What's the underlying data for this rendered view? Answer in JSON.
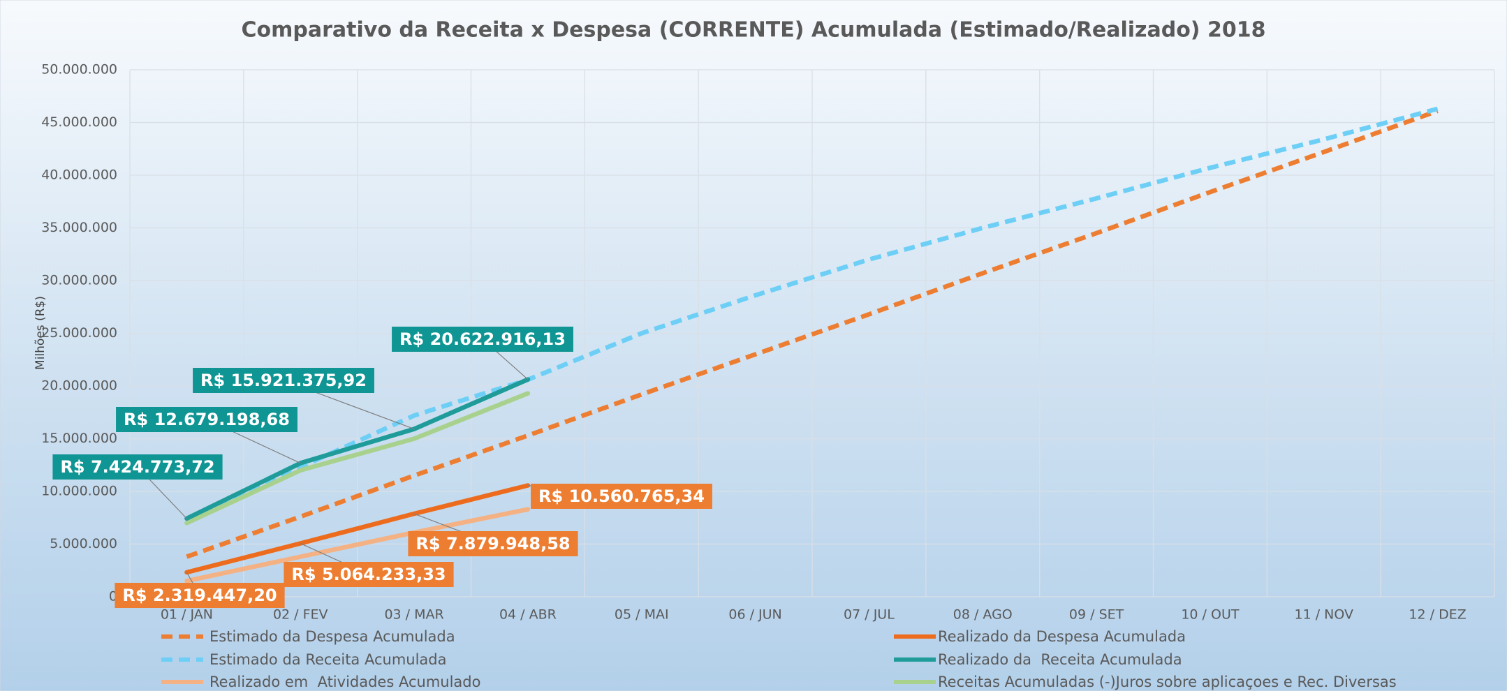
{
  "chart_data": {
    "type": "line",
    "title": "Comparativo da Receita x Despesa (CORRENTE) Acumulada (Estimado/Realizado) 2018",
    "y_label": "Milhões (R$)",
    "categories": [
      "01 / JAN",
      "02 / FEV",
      "03 / MAR",
      "04 / ABR",
      "05 / MAI",
      "06 / JUN",
      "07 / JUL",
      "08 / AGO",
      "09 / SET",
      "10 / OUT",
      "11 / NOV",
      "12 / DEZ"
    ],
    "ylim": [
      0,
      50000000
    ],
    "yticks": [
      0,
      {
        "value": 5000000,
        "label": "5.000.000"
      },
      {
        "value": 10000000,
        "label": "10.000.000"
      },
      {
        "value": 15000000,
        "label": "15.000.000"
      },
      {
        "value": 20000000,
        "label": "20.000.000"
      },
      {
        "value": 25000000,
        "label": "25.000.000"
      },
      {
        "value": 30000000,
        "label": "30.000.000"
      },
      {
        "value": 35000000,
        "label": "35.000.000"
      },
      {
        "value": 40000000,
        "label": "40.000.000"
      },
      {
        "value": 45000000,
        "label": "45.000.000"
      },
      {
        "value": 50000000,
        "label": "50.000.000"
      }
    ],
    "grid": true,
    "legend": "bottom",
    "series": [
      {
        "name": "Estimado da Despesa Acumulada",
        "color": "#ed7d31",
        "dashed": true,
        "values": [
          3800000,
          7600000,
          11500000,
          15300000,
          19200000,
          23000000,
          26800000,
          30700000,
          34500000,
          38400000,
          42200000,
          46100000
        ]
      },
      {
        "name": "Realizado da Despesa Acumulada",
        "color": "#ed6b1c",
        "dashed": false,
        "values": [
          2319447.2,
          5064233.33,
          7879948.58,
          10560765.34,
          null,
          null,
          null,
          null,
          null,
          null,
          null,
          null
        ],
        "value_labels": [
          "R$ 2.319.447,20",
          "R$ 5.064.233,33",
          "R$ 7.879.948,58",
          "R$ 10.560.765,34",
          null,
          null,
          null,
          null,
          null,
          null,
          null,
          null
        ]
      },
      {
        "name": "Estimado da Receita Acumulada",
        "color": "#6dcff6",
        "dashed": true,
        "values": [
          7200000,
          12300000,
          17200000,
          20600000,
          25000000,
          28600000,
          32000000,
          35000000,
          37800000,
          40700000,
          43400000,
          46300000
        ]
      },
      {
        "name": "Realizado da  Receita Acumulada",
        "color": "#1f9c9a",
        "dashed": false,
        "values": [
          7424773.72,
          12679198.68,
          15921375.92,
          20622916.13,
          null,
          null,
          null,
          null,
          null,
          null,
          null,
          null
        ],
        "value_labels": [
          "R$ 7.424.773,72",
          "R$ 12.679.198,68",
          "R$ 15.921.375,92",
          "R$ 20.622.916,13",
          null,
          null,
          null,
          null,
          null,
          null,
          null,
          null
        ]
      },
      {
        "name": "Realizado em  Atividades Acumulado",
        "color": "#f4b183",
        "dashed": false,
        "values": [
          1500000,
          3800000,
          6100000,
          8300000,
          null,
          null,
          null,
          null,
          null,
          null,
          null,
          null
        ]
      },
      {
        "name": "Receitas Acumuladas (-)Juros sobre aplicaçoes e Rec. Diversas",
        "color": "#a9d18e",
        "dashed": false,
        "values": [
          7000000,
          12000000,
          15000000,
          19300000,
          null,
          null,
          null,
          null,
          null,
          null,
          null,
          null
        ]
      }
    ]
  }
}
